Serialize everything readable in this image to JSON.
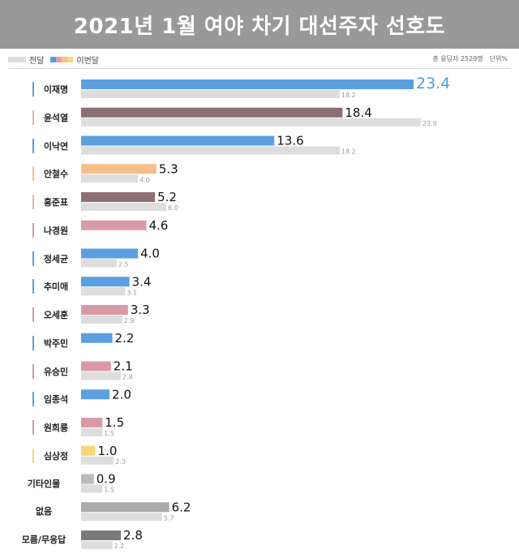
{
  "title": "2021년 1월 여야 차기 대선주자 선호도",
  "legend": {
    "previous_label": "전달",
    "current_label": "이번달",
    "current_swatch_colors": [
      "#4f9be0",
      "#e3a0aa",
      "#f5bf85",
      "#f5d87a"
    ]
  },
  "meta": {
    "respondents": "총 응답자 2529명",
    "unit": "단위%"
  },
  "chart_data": {
    "type": "bar",
    "orientation": "horizontal",
    "categories": [
      "이재명",
      "윤석열",
      "이낙연",
      "안철수",
      "홍준표",
      "나경원",
      "정세균",
      "추미애",
      "오세훈",
      "박주민",
      "유승민",
      "임종석",
      "원희룡",
      "심상정",
      "기타인물",
      "없음",
      "모름/무응답"
    ],
    "series": [
      {
        "name": "이번달",
        "values": [
          23.4,
          18.4,
          13.6,
          5.3,
          5.2,
          4.6,
          4.0,
          3.4,
          3.3,
          2.2,
          2.1,
          2.0,
          1.5,
          1.0,
          0.9,
          6.2,
          2.8
        ],
        "colors": [
          "#5b9fe1",
          "#8c6f72",
          "#5b9fe1",
          "#f7bf88",
          "#8c6f72",
          "#d99aa5",
          "#5b9fe1",
          "#5b9fe1",
          "#d99aa5",
          "#5b9fe1",
          "#d99aa5",
          "#5b9fe1",
          "#d99aa5",
          "#f5d87a",
          "#bbbbbb",
          "#aaaaaa",
          "#7a7a7a"
        ]
      },
      {
        "name": "전달",
        "values": [
          18.2,
          23.9,
          18.2,
          4.0,
          6.0,
          null,
          2.5,
          3.1,
          2.9,
          null,
          2.8,
          null,
          1.5,
          2.3,
          1.5,
          5.7,
          2.2
        ],
        "color": "#dddddd"
      }
    ],
    "label_marker_colors": [
      "#5b9fe1",
      "#e0b8a8",
      "#5b9fe1",
      "#f7bf88",
      "#e0b8a8",
      "#d99aa5",
      "#5b9fe1",
      "#5b9fe1",
      "#d99aa5",
      "#5b9fe1",
      "#d99aa5",
      "#5b9fe1",
      "#d99aa5",
      "#f5d87a",
      null,
      null,
      null
    ],
    "xlim": [
      0,
      23.4
    ],
    "grid": false,
    "value_labels": [
      "23.4",
      "18.4",
      "13.6",
      "5.3",
      "5.2",
      "4.6",
      "4.0",
      "3.4",
      "3.3",
      "2.2",
      "2.1",
      "2.0",
      "1.5",
      "1.0",
      "0.9",
      "6.2",
      "2.8"
    ],
    "previous_value_labels": [
      "18.2",
      "23.9",
      "18.2",
      "4.0",
      "6.0",
      "",
      "2.5",
      "3.1",
      "2.9",
      "",
      "2.8",
      "",
      "1.5",
      "2.3",
      "1.5",
      "5.7",
      "2.2"
    ]
  }
}
